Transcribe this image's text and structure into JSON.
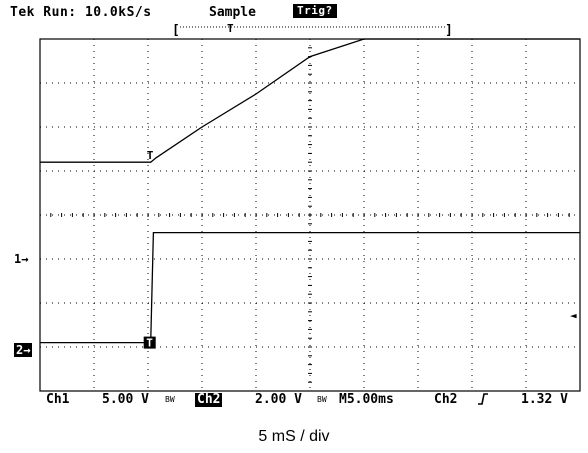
{
  "header": {
    "run_status": "Tek Run: 10.0kS/s",
    "acquisition_mode": "Sample",
    "trigger_badge": "Trig?"
  },
  "status_bar": {
    "ch1_label": "Ch1",
    "ch1_scale": "5.00 V",
    "ch1_bw_symbol": "BW",
    "ch2_label": "Ch2",
    "ch2_scale": "2.00 V",
    "ch2_bw_symbol": "BW",
    "timebase": "M5.00ms",
    "trigger_source": "Ch2",
    "trigger_slope_icon": "rising-edge-icon",
    "trigger_level": "1.32 V"
  },
  "markers": {
    "ch1_marker": "1→",
    "ch2_marker": "2→",
    "trigger_level_marker": "◄"
  },
  "caption": "5 mS / div",
  "chart_data": {
    "type": "line",
    "xlabel": "",
    "ylabel": "",
    "time_per_div_ms": 5,
    "x_divisions": 10,
    "y_divisions": 8,
    "grid": true,
    "series": [
      {
        "name": "Ch1",
        "color": "#000000",
        "x_div": [
          0,
          2.05,
          2.15,
          3.0,
          4.0,
          5.0,
          6.0,
          10.0
        ],
        "y_div": [
          5.2,
          5.2,
          5.3,
          6.0,
          6.75,
          7.6,
          8.0,
          8.0
        ]
      },
      {
        "name": "Ch2",
        "color": "#000000",
        "x_div": [
          0,
          2.05,
          2.1,
          10.0
        ],
        "y_div": [
          1.1,
          1.1,
          3.6,
          3.6
        ]
      }
    ]
  }
}
